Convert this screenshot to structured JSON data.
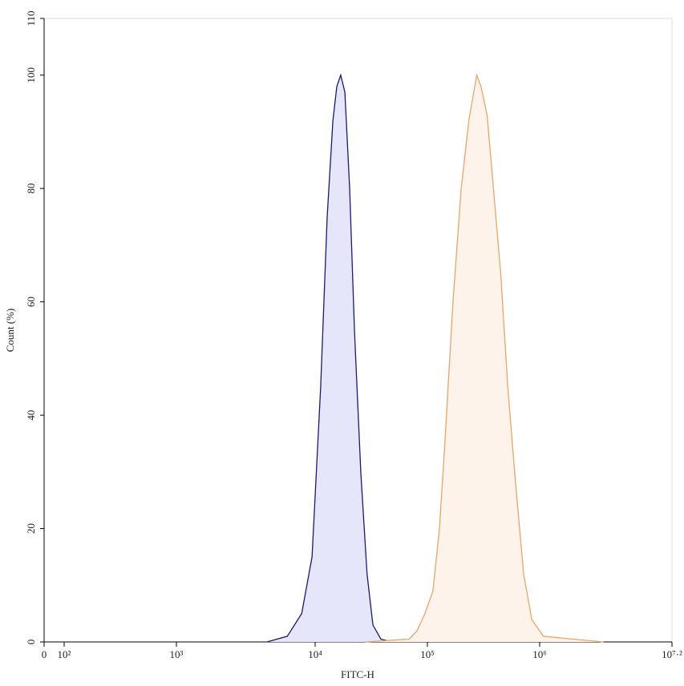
{
  "chart_data": {
    "type": "histogram-overlay",
    "x_label": "FITC-H",
    "y_label": "Count (%)",
    "xscale": "biexponential",
    "xlim": [
      0,
      15848932
    ],
    "xticks": [
      0,
      {
        "value": 100,
        "label": "10²"
      },
      {
        "value": 1000,
        "label": "10³"
      },
      {
        "value": 10000,
        "label": "10⁴"
      },
      {
        "value": 100000,
        "label": "10⁵"
      },
      {
        "value": 1000000,
        "label": "10⁶"
      },
      {
        "value": 15848932,
        "label": "10⁷·²"
      }
    ],
    "ylim": [
      0,
      110
    ],
    "yticks": [
      0,
      20,
      40,
      60,
      80,
      100,
      110
    ],
    "series": [
      {
        "color": "#1a1a6e",
        "fill": "#e6e6fa",
        "x": [
          4500,
          6300,
          8000,
          9500,
          11200,
          12800,
          14400,
          15600,
          16900,
          18400,
          20300,
          22400,
          25500,
          29000,
          32700,
          38500,
          49000
        ],
        "values": [
          0,
          1,
          5,
          15,
          45,
          75,
          92,
          98,
          100,
          97,
          80,
          55,
          30,
          12,
          3,
          0.5,
          0
        ]
      },
      {
        "color": "#e5a66a",
        "fill": "#fdf3ea",
        "x": [
          28000,
          69000,
          81000,
          95000,
          112000,
          128000,
          143000,
          169000,
          200000,
          234000,
          275000,
          300000,
          340000,
          380000,
          450000,
          520000,
          610000,
          720000,
          850000,
          1080000,
          2000000,
          3800000
        ],
        "values": [
          0,
          0.5,
          2,
          5,
          9,
          20,
          35,
          60,
          80,
          92,
          100,
          98,
          93,
          82,
          65,
          45,
          28,
          12,
          4,
          1,
          0.5,
          0
        ]
      }
    ]
  }
}
